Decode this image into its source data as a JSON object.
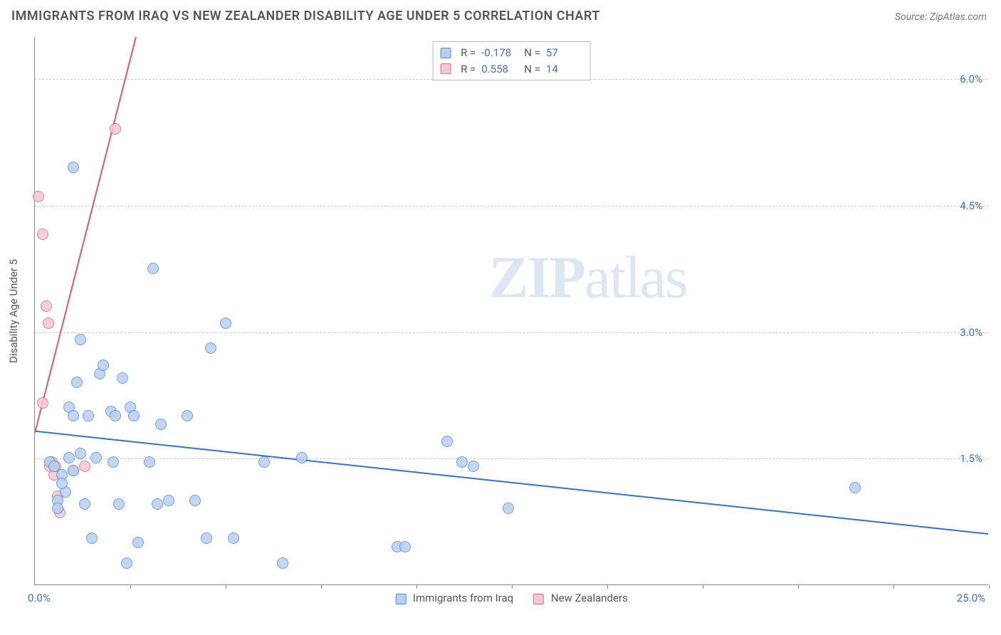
{
  "title": "IMMIGRANTS FROM IRAQ VS NEW ZEALANDER DISABILITY AGE UNDER 5 CORRELATION CHART",
  "source": "Source: ZipAtlas.com",
  "y_axis_label": "Disability Age Under 5",
  "watermark_bold": "ZIP",
  "watermark_light": "atlas",
  "chart": {
    "type": "scatter",
    "xlim": [
      0,
      25
    ],
    "ylim": [
      0,
      6.5
    ],
    "y_ticks": [
      1.5,
      3.0,
      4.5,
      6.0
    ],
    "y_tick_labels": [
      "1.5%",
      "3.0%",
      "4.5%",
      "6.0%"
    ],
    "x_ticks": [
      2.5,
      5,
      7.5,
      10,
      12.5,
      15,
      17.5,
      20,
      22.5,
      25
    ],
    "x_min_label": "0.0%",
    "x_max_label": "25.0%",
    "background_color": "#ffffff",
    "grid_color": "#cccccc",
    "marker_radius": 8,
    "marker_stroke_width": 1.2,
    "series": [
      {
        "name": "Immigrants from Iraq",
        "fill": "#b7d0f1",
        "stroke": "#5a8fd6",
        "swatch_fill": "#b7d0f1",
        "swatch_border": "#5a8fd6",
        "r_value": "-0.178",
        "n_value": "57",
        "trend": {
          "color": "#2f72d6",
          "width": 2,
          "x1": 0,
          "y1": 1.82,
          "x2": 25,
          "y2": 0.6,
          "dash": null
        },
        "points": [
          [
            0.4,
            1.45
          ],
          [
            0.5,
            1.4
          ],
          [
            0.6,
            1.0
          ],
          [
            0.7,
            1.3
          ],
          [
            0.8,
            1.1
          ],
          [
            0.9,
            1.5
          ],
          [
            1.0,
            1.35
          ],
          [
            0.6,
            0.9
          ],
          [
            0.7,
            1.2
          ],
          [
            0.9,
            2.1
          ],
          [
            1.0,
            2.0
          ],
          [
            1.1,
            2.4
          ],
          [
            1.2,
            1.55
          ],
          [
            1.3,
            0.95
          ],
          [
            1.4,
            2.0
          ],
          [
            1.2,
            2.9
          ],
          [
            1.0,
            4.95
          ],
          [
            1.5,
            0.55
          ],
          [
            1.6,
            1.5
          ],
          [
            1.7,
            2.5
          ],
          [
            1.8,
            2.6
          ],
          [
            2.0,
            2.05
          ],
          [
            2.05,
            1.45
          ],
          [
            2.1,
            2.0
          ],
          [
            2.2,
            0.95
          ],
          [
            2.3,
            2.45
          ],
          [
            2.4,
            0.25
          ],
          [
            2.5,
            2.1
          ],
          [
            2.6,
            2.0
          ],
          [
            2.7,
            0.5
          ],
          [
            3.0,
            1.45
          ],
          [
            3.1,
            3.75
          ],
          [
            3.2,
            0.95
          ],
          [
            3.3,
            1.9
          ],
          [
            3.5,
            1.0
          ],
          [
            4.0,
            2.0
          ],
          [
            4.2,
            1.0
          ],
          [
            4.5,
            0.55
          ],
          [
            4.6,
            2.8
          ],
          [
            5.0,
            3.1
          ],
          [
            5.2,
            0.55
          ],
          [
            6.0,
            1.45
          ],
          [
            6.5,
            0.25
          ],
          [
            7.0,
            1.5
          ],
          [
            9.5,
            0.45
          ],
          [
            9.7,
            0.45
          ],
          [
            10.8,
            1.7
          ],
          [
            11.2,
            1.45
          ],
          [
            11.5,
            1.4
          ],
          [
            12.4,
            0.9
          ],
          [
            21.5,
            1.15
          ]
        ]
      },
      {
        "name": "New Zealanders",
        "fill": "#f5c6d3",
        "stroke": "#e06c8f",
        "swatch_fill": "#f5c6d3",
        "swatch_border": "#e06c8f",
        "r_value": "0.558",
        "n_value": "14",
        "trend": {
          "color": "#e94e7c",
          "width": 2,
          "x1": 0,
          "y1": 1.8,
          "x2": 2.65,
          "y2": 6.5,
          "dash": null
        },
        "trend_dash": {
          "color": "#e94e7c",
          "width": 1,
          "x1": 2.65,
          "y1": 6.5,
          "x2": 3.6,
          "y2": 8.2,
          "dash": "6 5"
        },
        "points": [
          [
            0.1,
            4.6
          ],
          [
            0.2,
            4.15
          ],
          [
            0.3,
            3.3
          ],
          [
            0.35,
            3.1
          ],
          [
            0.2,
            2.15
          ],
          [
            0.4,
            1.4
          ],
          [
            0.45,
            1.45
          ],
          [
            0.5,
            1.3
          ],
          [
            0.55,
            1.4
          ],
          [
            0.6,
            1.05
          ],
          [
            0.65,
            0.85
          ],
          [
            1.0,
            1.35
          ],
          [
            1.3,
            1.4
          ],
          [
            2.1,
            5.4
          ]
        ]
      }
    ]
  },
  "legend": {
    "series1_label": "Immigrants from Iraq",
    "series2_label": "New Zealanders"
  },
  "stats_labels": {
    "r": "R =",
    "n": "N ="
  }
}
